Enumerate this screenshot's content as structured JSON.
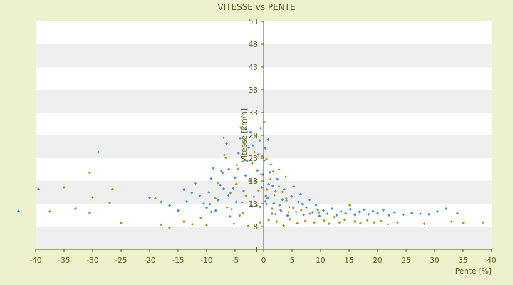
{
  "chart_data": {
    "type": "scatter",
    "title": "VITESSE vs PENTE",
    "xlabel": "Pente [%]",
    "ylabel": "Vitesse [km/h]",
    "xlim": [
      -40,
      40
    ],
    "ylim": [
      3,
      53
    ],
    "x_ticks": [
      -40,
      -35,
      -30,
      -25,
      -20,
      -15,
      -10,
      -5,
      0,
      5,
      10,
      15,
      20,
      25,
      30,
      35,
      40
    ],
    "y_ticks": [
      3,
      8,
      13,
      18,
      23,
      28,
      33,
      38,
      43,
      48,
      53
    ],
    "grid": "horizontal bands",
    "legend": "none",
    "colors": {
      "background": "#eef2cc",
      "plot": "#ffffff",
      "band": "#efefef",
      "axis": "#555a1c",
      "text": "#555a1c",
      "series_a": "#3d8ee0",
      "series_b": "#a89a1a"
    },
    "series": [
      {
        "color": "#3d8ee0",
        "points": [
          [
            -43,
            11.4
          ],
          [
            -39.5,
            16.2
          ],
          [
            -33,
            11.9
          ],
          [
            -30.5,
            11
          ],
          [
            -29,
            24.3
          ],
          [
            -20,
            14.3
          ],
          [
            -18,
            13.4
          ],
          [
            -16.5,
            12.6
          ],
          [
            -15,
            11.5
          ],
          [
            -14,
            16.1
          ],
          [
            -13.5,
            13.5
          ],
          [
            -12,
            17.5
          ],
          [
            -11.2,
            14.8
          ],
          [
            -10.5,
            13
          ],
          [
            -10,
            12.1
          ],
          [
            -9.6,
            15.5
          ],
          [
            -9.2,
            18.5
          ],
          [
            -8.8,
            20.8
          ],
          [
            -8.4,
            11.5
          ],
          [
            -8,
            13.8
          ],
          [
            -7.6,
            17.1
          ],
          [
            -7.2,
            19.8
          ],
          [
            -6.9,
            23.7
          ],
          [
            -6.5,
            26.2
          ],
          [
            -6.2,
            14.9
          ],
          [
            -5.9,
            10.2
          ],
          [
            -5.6,
            11.8
          ],
          [
            -5.3,
            16.4
          ],
          [
            -5,
            18.7
          ],
          [
            -4.7,
            21.5
          ],
          [
            -4.4,
            24.1
          ],
          [
            -4.1,
            27.4
          ],
          [
            -3.8,
            13.3
          ],
          [
            -3.5,
            15.8
          ],
          [
            -3.2,
            19.2
          ],
          [
            -2.9,
            22.4
          ],
          [
            -2.6,
            25.3
          ],
          [
            -2.3,
            28.7
          ],
          [
            -2,
            12.4
          ],
          [
            -1.7,
            14.5
          ],
          [
            -1.4,
            17.9
          ],
          [
            -1.1,
            20.3
          ],
          [
            -0.9,
            23.8
          ],
          [
            -0.7,
            26.9
          ],
          [
            -0.5,
            29.6
          ],
          [
            -0.3,
            16.6
          ],
          [
            -0.1,
            19.4
          ],
          [
            0.1,
            22.5
          ],
          [
            0.3,
            25.2
          ],
          [
            0.5,
            12.9
          ],
          [
            0.7,
            14.2
          ],
          [
            0.9,
            17.3
          ],
          [
            1.1,
            19.9
          ],
          [
            1.3,
            21.6
          ],
          [
            1.5,
            10.8
          ],
          [
            1.8,
            13.1
          ],
          [
            2.1,
            15.7
          ],
          [
            2.4,
            18.4
          ],
          [
            2.7,
            20.5
          ],
          [
            3,
            11.6
          ],
          [
            3.3,
            13.9
          ],
          [
            3.6,
            16.2
          ],
          [
            3.9,
            18.9
          ],
          [
            4.2,
            10.4
          ],
          [
            4.5,
            12.3
          ],
          [
            4.9,
            14.6
          ],
          [
            5.3,
            16.8
          ],
          [
            5.7,
            11.2
          ],
          [
            6.1,
            13.4
          ],
          [
            6.5,
            15.1
          ],
          [
            7,
            10.6
          ],
          [
            7.5,
            12.2
          ],
          [
            8,
            13.8
          ],
          [
            8.6,
            11.1
          ],
          [
            9.2,
            12.7
          ],
          [
            9.8,
            10.3
          ],
          [
            10.5,
            11.5
          ],
          [
            11.2,
            10.8
          ],
          [
            12,
            11.9
          ],
          [
            12.8,
            10.5
          ],
          [
            13.6,
            11.3
          ],
          [
            14.4,
            10.9
          ],
          [
            15.2,
            11.8
          ],
          [
            16,
            10.6
          ],
          [
            16.8,
            11.2
          ],
          [
            17.6,
            11.7
          ],
          [
            18.4,
            10.7
          ],
          [
            19.2,
            11.4
          ],
          [
            20,
            10.9
          ],
          [
            21,
            11.6
          ],
          [
            22,
            10.5
          ],
          [
            23,
            11.1
          ],
          [
            24.5,
            10.6
          ],
          [
            26,
            10.9
          ],
          [
            27.5,
            10.8
          ],
          [
            29,
            10.7
          ],
          [
            30.5,
            11.3
          ],
          [
            32,
            11.9
          ],
          [
            34,
            10.9
          ],
          [
            -9.4,
            12.9
          ],
          [
            -7,
            16.3
          ],
          [
            -4.8,
            13.4
          ],
          [
            -2.5,
            18.1
          ],
          [
            -0.6,
            12.3
          ],
          [
            0.4,
            14.7
          ],
          [
            1.6,
            16.9
          ],
          [
            2.8,
            12.7
          ],
          [
            4,
            14.1
          ],
          [
            6.8,
            12.9
          ],
          [
            9.5,
            11.7
          ],
          [
            -12.6,
            15.4
          ],
          [
            -6.1,
            20.6
          ],
          [
            -1.9,
            25.8
          ],
          [
            0.8,
            27.1
          ],
          [
            -3.1,
            29.3
          ]
        ]
      },
      {
        "color": "#a89a1a",
        "points": [
          [
            -37.5,
            11.3
          ],
          [
            -35,
            16.6
          ],
          [
            -30.5,
            19.8
          ],
          [
            -30,
            14.4
          ],
          [
            -27,
            13.2
          ],
          [
            -26.5,
            16.2
          ],
          [
            -25,
            8.8
          ],
          [
            -19,
            14.2
          ],
          [
            -18,
            8.4
          ],
          [
            -16.5,
            7.7
          ],
          [
            -14,
            9.1
          ],
          [
            -12.5,
            8.5
          ],
          [
            -11,
            9.9
          ],
          [
            -10,
            8.3
          ],
          [
            -9.2,
            11.2
          ],
          [
            -8.5,
            14.2
          ],
          [
            -8,
            17.6
          ],
          [
            -7.4,
            20.2
          ],
          [
            -7,
            27.5
          ],
          [
            -6.4,
            12.2
          ],
          [
            -5.8,
            15.4
          ],
          [
            -5.2,
            8.6
          ],
          [
            -4.8,
            17.3
          ],
          [
            -4.5,
            20.6
          ],
          [
            -4,
            29.7
          ],
          [
            -3.6,
            11
          ],
          [
            -3.1,
            14.8
          ],
          [
            -2.7,
            8.1
          ],
          [
            -2.4,
            18
          ],
          [
            -2,
            21.9
          ],
          [
            -1.6,
            24.3
          ],
          [
            -1.2,
            12.6
          ],
          [
            -0.9,
            15.9
          ],
          [
            -0.6,
            8.9
          ],
          [
            -0.4,
            19.4
          ],
          [
            -0.2,
            23.4
          ],
          [
            0.1,
            30.9
          ],
          [
            0.3,
            13.5
          ],
          [
            0.6,
            16.1
          ],
          [
            0.9,
            9.4
          ],
          [
            1.2,
            18.4
          ],
          [
            1.5,
            11.9
          ],
          [
            1.9,
            14.9
          ],
          [
            2.3,
            9.1
          ],
          [
            2.7,
            16.8
          ],
          [
            3.1,
            11.3
          ],
          [
            3.5,
            8.2
          ],
          [
            4,
            13.7
          ],
          [
            4.6,
            9.6
          ],
          [
            5.2,
            12.1
          ],
          [
            5.9,
            8.7
          ],
          [
            6.6,
            11.6
          ],
          [
            7.3,
            9.2
          ],
          [
            8.1,
            10.8
          ],
          [
            8.9,
            8.9
          ],
          [
            9.7,
            11.1
          ],
          [
            10.6,
            9.3
          ],
          [
            11.5,
            8.6
          ],
          [
            12.4,
            10.1
          ],
          [
            13.3,
            8.9
          ],
          [
            14.2,
            9.5
          ],
          [
            15.1,
            12.7
          ],
          [
            16,
            9.1
          ],
          [
            17,
            8.7
          ],
          [
            18.2,
            9.4
          ],
          [
            19.4,
            8.9
          ],
          [
            20.6,
            9.2
          ],
          [
            21.8,
            8.5
          ],
          [
            23.5,
            8.9
          ],
          [
            28.2,
            8.6
          ],
          [
            33,
            9.1
          ],
          [
            35,
            8.8
          ],
          [
            38.5,
            8.9
          ],
          [
            -6.6,
            23.1
          ],
          [
            -3.4,
            26.2
          ],
          [
            -1.4,
            27.9
          ],
          [
            0.5,
            22.8
          ],
          [
            1.7,
            20.1
          ],
          [
            3.3,
            15.6
          ],
          [
            -4.2,
            10.4
          ],
          [
            -2.2,
            12.5
          ],
          [
            2.1,
            10.7
          ],
          [
            4.4,
            11.2
          ]
        ]
      }
    ]
  }
}
